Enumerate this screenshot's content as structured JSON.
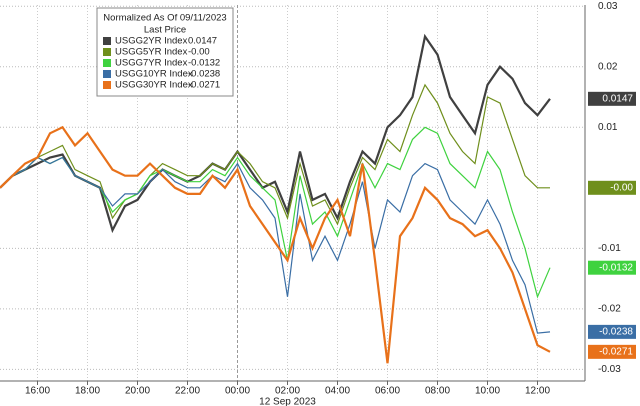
{
  "chart_data": {
    "type": "line",
    "legend_title": "Normalized As Of 09/11/2023",
    "legend_subtitle": "Last Price",
    "date_label": "12 Sep 2023",
    "x": [
      -9.5,
      -9,
      -8.5,
      -8,
      -7.5,
      -7,
      -6.5,
      -6,
      -5.5,
      -5,
      -4.5,
      -4,
      -3.5,
      -3,
      -2.5,
      -2,
      -1.5,
      -1,
      -0.5,
      0,
      0.5,
      1,
      1.5,
      2,
      2.5,
      3,
      3.5,
      4,
      4.5,
      5,
      5.5,
      6,
      6.5,
      7,
      7.5,
      8,
      8.5,
      9,
      9.5,
      10,
      10.5,
      11,
      11.5,
      12,
      12.5
    ],
    "xlim": [
      -9.5,
      13.9
    ],
    "xticks": [
      {
        "value": -8,
        "label": "16:00"
      },
      {
        "value": -6,
        "label": "18:00"
      },
      {
        "value": -4,
        "label": "20:00"
      },
      {
        "value": -2,
        "label": "22:00"
      },
      {
        "value": 0,
        "label": "00:00"
      },
      {
        "value": 2,
        "label": "02:00"
      },
      {
        "value": 4,
        "label": "04:00"
      },
      {
        "value": 6,
        "label": "06:00"
      },
      {
        "value": 8,
        "label": "08:00"
      },
      {
        "value": 10,
        "label": "10:00"
      },
      {
        "value": 12,
        "label": "12:00"
      }
    ],
    "ylim": [
      -0.0301,
      0.0302
    ],
    "yticks": [
      0.03,
      0.02,
      0.01,
      -0.01,
      -0.02,
      -0.03
    ],
    "grid": true,
    "series": [
      {
        "name": "USGG2YR Index",
        "color": "#404040",
        "text_color": "#ffffff",
        "last_price": "0.0147",
        "values": [
          0,
          0.002,
          0.003,
          0.004,
          0.005,
          0.0055,
          0.002,
          0.001,
          0.0,
          -0.007,
          -0.003,
          -0.002,
          0.001,
          0.003,
          0.002,
          0.001,
          0.002,
          0.004,
          0.003,
          0.006,
          0.003,
          0.0,
          0.001,
          -0.004,
          0.006,
          -0.002,
          -0.001,
          -0.005,
          0.001,
          0.006,
          0.004,
          0.01,
          0.012,
          0.015,
          0.025,
          0.022,
          0.015,
          0.012,
          0.009,
          0.017,
          0.02,
          0.018,
          0.014,
          0.012,
          0.0147
        ]
      },
      {
        "name": "USGG5YR Index",
        "color": "#6f8f1c",
        "text_color": "#ffffff",
        "last_price": "-0.00",
        "values": [
          0,
          0.002,
          0.003,
          0.005,
          0.006,
          0.007,
          0.003,
          0.002,
          0.001,
          -0.005,
          -0.002,
          -0.001,
          0.002,
          0.004,
          0.003,
          0.002,
          0.002,
          0.004,
          0.003,
          0.006,
          0.004,
          0.001,
          0.0,
          -0.005,
          0.004,
          -0.003,
          -0.002,
          -0.006,
          0.0,
          0.005,
          0.003,
          0.008,
          0.006,
          0.012,
          0.017,
          0.014,
          0.009,
          0.006,
          0.004,
          0.015,
          0.014,
          0.008,
          0.002,
          0.0,
          0.0
        ]
      },
      {
        "name": "USGG7YR Index",
        "color": "#3fd23f",
        "text_color": "#ffffff",
        "last_price": "-0.0132",
        "values": [
          0,
          0.002,
          0.003,
          0.005,
          0.004,
          0.005,
          0.002,
          0.001,
          0.0,
          -0.004,
          -0.002,
          -0.001,
          0.002,
          0.003,
          0.002,
          0.001,
          0.001,
          0.003,
          0.002,
          0.005,
          0.002,
          0.0,
          -0.002,
          -0.012,
          0.002,
          -0.006,
          -0.004,
          -0.008,
          -0.002,
          0.004,
          0.0,
          0.004,
          0.003,
          0.008,
          0.01,
          0.009,
          0.004,
          0.002,
          0.0,
          0.006,
          0.003,
          -0.004,
          -0.01,
          -0.018,
          -0.0132
        ]
      },
      {
        "name": "USGG10YR Index",
        "color": "#3a6ea5",
        "text_color": "#ffffff",
        "last_price": "-0.0238",
        "values": [
          0,
          0.002,
          0.003,
          0.005,
          0.004,
          0.005,
          0.002,
          0.001,
          0.0,
          -0.003,
          -0.001,
          -0.001,
          0.001,
          0.003,
          0.001,
          0.0,
          0.0,
          0.002,
          0.001,
          0.004,
          0.0,
          -0.002,
          -0.005,
          -0.018,
          -0.001,
          -0.012,
          -0.008,
          -0.012,
          -0.006,
          0.001,
          -0.01,
          -0.002,
          -0.004,
          0.002,
          0.004,
          0.003,
          -0.002,
          -0.004,
          -0.006,
          -0.002,
          -0.006,
          -0.012,
          -0.016,
          -0.024,
          -0.0238
        ]
      },
      {
        "name": "USGG30YR Index",
        "color": "#e8711a",
        "text_color": "#ffffff",
        "last_price": "-0.0271",
        "values": [
          0,
          0.002,
          0.004,
          0.005,
          0.009,
          0.01,
          0.007,
          0.009,
          0.006,
          0.003,
          0.002,
          0.002,
          0.004,
          0.002,
          0.0,
          -0.001,
          -0.001,
          0.002,
          0.0,
          0.003,
          -0.003,
          -0.006,
          -0.009,
          -0.012,
          -0.005,
          -0.01,
          -0.005,
          -0.002,
          -0.008,
          0.004,
          -0.012,
          -0.029,
          -0.008,
          -0.005,
          0.0,
          -0.002,
          -0.005,
          -0.006,
          -0.008,
          -0.007,
          -0.01,
          -0.014,
          -0.02,
          -0.026,
          -0.0271
        ]
      }
    ]
  }
}
